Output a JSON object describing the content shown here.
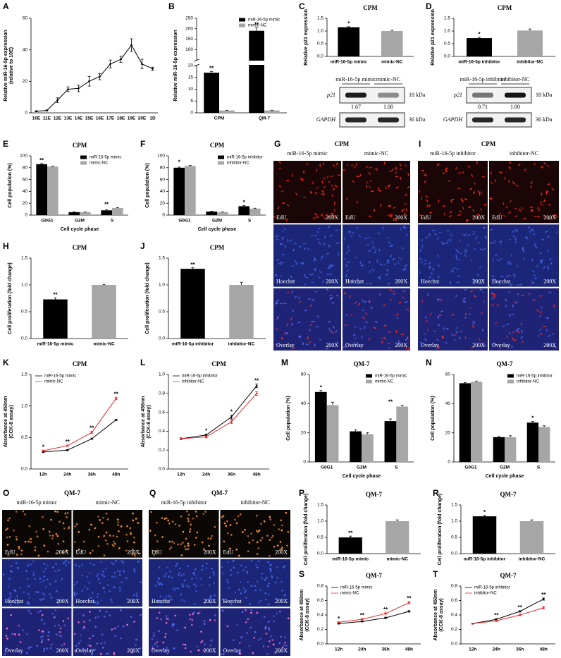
{
  "chart_data": [
    {
      "panel": "A",
      "type": "line",
      "ylabel": [
        "Relative miR-16-5p expression",
        "(relative to 10E)"
      ],
      "categories": [
        "10E",
        "11E",
        "12E",
        "13E",
        "14E",
        "15E",
        "16E",
        "17E",
        "18E",
        "19E",
        "20E",
        "1D"
      ],
      "values": [
        1,
        1.5,
        8,
        15,
        15.5,
        20,
        23,
        31,
        34,
        43,
        31,
        28
      ],
      "errors": [
        0.3,
        0.3,
        1.5,
        1.5,
        2,
        3,
        2,
        2.5,
        2,
        4,
        3,
        1
      ],
      "color": "#000000",
      "ylim": [
        0,
        60
      ],
      "yticks": [
        0,
        20,
        40,
        60
      ]
    },
    {
      "panel": "B",
      "type": "grouped_bar",
      "ylabel": "Relative miR-16-5p expression",
      "categories": [
        "CPM",
        "QM-7"
      ],
      "series": [
        {
          "name": "miR-16-5p mimic",
          "color": "#000000",
          "values": [
            17,
            190
          ],
          "errors": [
            0.5,
            15
          ]
        },
        {
          "name": "mimic-NC",
          "color": "#a6a6a6",
          "values": [
            1,
            1
          ],
          "errors": [
            0.1,
            0.1
          ]
        }
      ],
      "annotations": [
        "**",
        "**"
      ],
      "legend": "upper right",
      "ylim": [
        0,
        250
      ],
      "ybreak": [
        20,
        50
      ],
      "yticks": [
        0,
        5,
        10,
        15,
        20,
        100,
        150,
        200,
        250
      ]
    },
    {
      "panel": "C",
      "type": "bar",
      "title": "CPM",
      "ylabel": "Relative p21 expression",
      "categories": [
        "miR-16-5p mimic",
        "mimic-NC"
      ],
      "values": [
        1.15,
        1.0
      ],
      "errors": [
        0.02,
        0.03
      ],
      "colors": [
        "#000000",
        "#a6a6a6"
      ],
      "annotations": [
        "*",
        null
      ],
      "ylim": [
        0,
        1.5
      ],
      "yticks": [
        {
          "value": 0,
          "label": "0.0"
        },
        {
          "value": 0.5,
          "label": "0.5"
        },
        {
          "value": 1,
          "label": "1.0"
        },
        {
          "value": 1.5,
          "label": "1.5"
        }
      ],
      "blot": {
        "lanes": [
          "miR-16-5p mimic",
          "mimic-NC"
        ],
        "proteins": [
          "p21",
          "GAPDH"
        ],
        "sizes": [
          "18 kDa",
          "36 kDa"
        ],
        "ratios": [
          "1.67",
          "1.00"
        ]
      }
    },
    {
      "panel": "D",
      "type": "bar",
      "title": "CPM",
      "ylabel": "Relative p21 expression",
      "categories": [
        "miR-16-5p inhibitor",
        "inhibitor-NC"
      ],
      "values": [
        0.72,
        1.02
      ],
      "errors": [
        0.03,
        0.06
      ],
      "colors": [
        "#000000",
        "#a6a6a6"
      ],
      "annotations": [
        "*",
        null
      ],
      "ylim": [
        0,
        1.5
      ],
      "yticks": [
        {
          "value": 0,
          "label": "0.0"
        },
        {
          "value": 0.5,
          "label": "0.5"
        },
        {
          "value": 1,
          "label": "1.0"
        },
        {
          "value": 1.5,
          "label": "1.5"
        }
      ],
      "blot": {
        "lanes": [
          "miR-16-5p inhibitor",
          "inhibitor-NC"
        ],
        "proteins": [
          "p21",
          "GAPDH"
        ],
        "sizes": [
          "18 kDa",
          "36 kDa"
        ],
        "ratios": [
          "0.71",
          "1.00"
        ]
      }
    },
    {
      "panel": "E",
      "type": "grouped_bar",
      "title": "CPM",
      "ylabel": "Cell population (%)",
      "xlabel": "Cell cycle phase",
      "categories": [
        "G0G1",
        "G2M",
        "S"
      ],
      "series": [
        {
          "name": "miR-16-5p mimic",
          "color": "#000000",
          "values": [
            86,
            5,
            8
          ],
          "errors": [
            1,
            0.5,
            1
          ]
        },
        {
          "name": "mimic-NC",
          "color": "#a6a6a6",
          "values": [
            82,
            5,
            12
          ],
          "errors": [
            0.8,
            0.5,
            0.6
          ]
        }
      ],
      "annotations": [
        "**",
        null,
        "**"
      ],
      "legend": "upper right",
      "ylim": [
        0,
        100
      ],
      "yticks": [
        0,
        20,
        40,
        60,
        80,
        100
      ]
    },
    {
      "panel": "F",
      "type": "grouped_bar",
      "title": "CPM",
      "ylabel": "Cell population (%)",
      "xlabel": "Cell cycle phase",
      "categories": [
        "G0G1",
        "G2M",
        "S"
      ],
      "series": [
        {
          "name": "miR-16-5p inhibitor",
          "color": "#000000",
          "values": [
            80,
            6,
            15
          ],
          "errors": [
            1,
            0.5,
            1
          ]
        },
        {
          "name": "inhibitor-NC",
          "color": "#a6a6a6",
          "values": [
            83,
            5,
            11
          ],
          "errors": [
            0.8,
            0.5,
            0.6
          ]
        }
      ],
      "annotations": [
        "*",
        null,
        "*"
      ],
      "legend": "upper right",
      "ylim": [
        0,
        100
      ],
      "yticks": [
        0,
        20,
        40,
        60,
        80,
        100
      ]
    },
    {
      "panel": "G",
      "type": "images",
      "title": "CPM",
      "columns": [
        "miR-16-5p mimic",
        "mimic-NC"
      ],
      "rows": [
        "EdU",
        "Hoechst",
        "Overlay"
      ],
      "magnification": "200X"
    },
    {
      "panel": "H",
      "type": "bar",
      "title": "CPM",
      "ylabel": "Cell proliferation (fold change)",
      "categories": [
        "miR-16-5p mimic",
        "mimic-NC"
      ],
      "values": [
        0.73,
        1.0
      ],
      "errors": [
        0.03,
        0.01
      ],
      "colors": [
        "#000000",
        "#a6a6a6"
      ],
      "annotations": [
        "**",
        null
      ],
      "ylim": [
        0,
        1.5
      ],
      "yticks": [
        {
          "value": 0,
          "label": "0.0"
        },
        {
          "value": 0.5,
          "label": "0.5"
        },
        {
          "value": 1,
          "label": "1.0"
        },
        {
          "value": 1.5,
          "label": "1.5"
        }
      ]
    },
    {
      "panel": "I",
      "type": "images",
      "title": "CPM",
      "columns": [
        "miR-16-5p inhibitor",
        "inhibitor-NC"
      ],
      "rows": [
        "EdU",
        "Hoechst",
        "Overlay"
      ],
      "magnification": "200X"
    },
    {
      "panel": "J",
      "type": "bar",
      "title": "CPM",
      "ylabel": "Cell proliferation (fold change)",
      "categories": [
        "miR-16-5p inhibitor",
        "inhibitor-NC"
      ],
      "values": [
        1.3,
        1.0
      ],
      "errors": [
        0.02,
        0.05
      ],
      "colors": [
        "#000000",
        "#a6a6a6"
      ],
      "annotations": [
        "**",
        null
      ],
      "ylim": [
        0,
        1.5
      ],
      "yticks": [
        {
          "value": 0,
          "label": "0.0"
        },
        {
          "value": 0.5,
          "label": "0.5"
        },
        {
          "value": 1,
          "label": "1.0"
        },
        {
          "value": 1.5,
          "label": "1.5"
        }
      ]
    },
    {
      "panel": "K",
      "type": "line",
      "title": "CPM",
      "ylabel": [
        "Absorbance at 450nm",
        "(CCK-8 assay)"
      ],
      "categories": [
        "12h",
        "24h",
        "36h",
        "48h"
      ],
      "series": [
        {
          "name": "miR-16-5p mimic",
          "color": "#000000",
          "values": [
            0.27,
            0.3,
            0.48,
            0.78
          ],
          "errors": [
            0.01,
            0.01,
            0.01,
            0.01
          ]
        },
        {
          "name": "mimic-NC",
          "color": "#e8262b",
          "values": [
            0.29,
            0.37,
            0.58,
            1.12
          ],
          "errors": [
            0.01,
            0.01,
            0.02,
            0.02
          ]
        }
      ],
      "annotations": [
        "*",
        "**",
        "**",
        "**"
      ],
      "legend": "upper left",
      "ylim": [
        0,
        1.5
      ],
      "yticks": [
        {
          "value": 0,
          "label": "0.0"
        },
        {
          "value": 0.5,
          "label": "0.5"
        },
        {
          "value": 1,
          "label": "1.0"
        },
        {
          "value": 1.5,
          "label": "1.5"
        }
      ]
    },
    {
      "panel": "L",
      "type": "line",
      "title": "CPM",
      "ylabel": [
        "Absorbance at 450nm",
        "(CCK-8 assay)"
      ],
      "categories": [
        "12h",
        "24h",
        "36h",
        "48h"
      ],
      "series": [
        {
          "name": "miR-16-5p inhibitor",
          "color": "#000000",
          "values": [
            0.32,
            0.36,
            0.55,
            0.88
          ],
          "errors": [
            0.01,
            0.01,
            0.02,
            0.02
          ]
        },
        {
          "name": "inhibitor-NC",
          "color": "#e8262b",
          "values": [
            0.32,
            0.34,
            0.5,
            0.8
          ],
          "errors": [
            0.01,
            0.01,
            0.02,
            0.02
          ]
        }
      ],
      "annotations": [
        null,
        "*",
        "*",
        "**"
      ],
      "legend": "upper left",
      "ylim": [
        0,
        1
      ],
      "yticks": [
        {
          "value": 0,
          "label": "0.0"
        },
        {
          "value": 0.2,
          "label": "0.2"
        },
        {
          "value": 0.4,
          "label": "0.4"
        },
        {
          "value": 0.6,
          "label": "0.6"
        },
        {
          "value": 0.8,
          "label": "0.8"
        },
        {
          "value": 1,
          "label": "1.0"
        }
      ]
    },
    {
      "panel": "M",
      "type": "grouped_bar",
      "title": "QM-7",
      "ylabel": "Cell population (%)",
      "xlabel": "Cell cycle phase",
      "categories": [
        "G0G1",
        "G2M",
        "S"
      ],
      "series": [
        {
          "name": "miR-16-5p mimic",
          "color": "#000000",
          "values": [
            48,
            21,
            28
          ],
          "errors": [
            1,
            1,
            1.5
          ]
        },
        {
          "name": "mimic-NC",
          "color": "#a6a6a6",
          "values": [
            39,
            19,
            38
          ],
          "errors": [
            2,
            1,
            1
          ]
        }
      ],
      "annotations": [
        "*",
        null,
        "**"
      ],
      "legend": "upper right",
      "ylim": [
        0,
        60
      ],
      "yticks": [
        0,
        20,
        40,
        60
      ]
    },
    {
      "panel": "N",
      "type": "grouped_bar",
      "title": "QM-7",
      "ylabel": "Cell population (%)",
      "xlabel": "Cell cycle phase",
      "categories": [
        "G0G1",
        "G2M",
        "S"
      ],
      "series": [
        {
          "name": "miR-16-5p inhibitor",
          "color": "#000000",
          "values": [
            54,
            17,
            27
          ],
          "errors": [
            0.5,
            0.5,
            0.8
          ]
        },
        {
          "name": "inhibitor-NC",
          "color": "#a6a6a6",
          "values": [
            55,
            17,
            24
          ],
          "errors": [
            0.5,
            1,
            0.8
          ]
        }
      ],
      "annotations": [
        null,
        null,
        "*"
      ],
      "legend": "upper right",
      "ylim": [
        0,
        60
      ],
      "yticks": [
        0,
        20,
        40,
        60
      ]
    },
    {
      "panel": "O",
      "type": "images",
      "title": "QM-7",
      "columns": [
        "miR-16-5p mimic",
        "mimic-NC"
      ],
      "rows": [
        "EdU",
        "Hoechst",
        "Overlay"
      ],
      "magnification": "200X"
    },
    {
      "panel": "P",
      "type": "bar",
      "title": "QM-7",
      "ylabel": "Cell proliferation (fold change)",
      "categories": [
        "miR-16-5p mimic",
        "mimic-NC"
      ],
      "values": [
        0.5,
        1.0
      ],
      "errors": [
        0.04,
        0.04
      ],
      "colors": [
        "#000000",
        "#a6a6a6"
      ],
      "annotations": [
        "**",
        null
      ],
      "ylim": [
        0,
        1.5
      ],
      "yticks": [
        {
          "value": 0,
          "label": "0.0"
        },
        {
          "value": 0.5,
          "label": "0.5"
        },
        {
          "value": 1,
          "label": "1.0"
        },
        {
          "value": 1.5,
          "label": "1.5"
        }
      ]
    },
    {
      "panel": "Q",
      "type": "images",
      "title": "QM-7",
      "columns": [
        "miR-16-5p inhibitor",
        "inhibitor-NC"
      ],
      "rows": [
        "EdU",
        "Hoechst",
        "Overlay"
      ],
      "magnification": "200X"
    },
    {
      "panel": "R",
      "type": "bar",
      "title": "QM-7",
      "ylabel": "Cell proliferation (fold change)",
      "categories": [
        "miR-16-5p inhibitor",
        "inhibitor-NC"
      ],
      "values": [
        1.15,
        1.0
      ],
      "errors": [
        0.03,
        0.04
      ],
      "colors": [
        "#000000",
        "#a6a6a6"
      ],
      "annotations": [
        "*",
        null
      ],
      "ylim": [
        0,
        1.5
      ],
      "yticks": [
        {
          "value": 0,
          "label": "0.0"
        },
        {
          "value": 0.5,
          "label": "0.5"
        },
        {
          "value": 1,
          "label": "1.0"
        },
        {
          "value": 1.5,
          "label": "1.5"
        }
      ]
    },
    {
      "panel": "S",
      "type": "line",
      "title": "QM-7",
      "ylabel": [
        "Absorbance at 450nm",
        "(CCK-8 assay)"
      ],
      "categories": [
        "12h",
        "24h",
        "36h",
        "48h"
      ],
      "series": [
        {
          "name": "miR-16-5p mimic",
          "color": "#000000",
          "values": [
            0.28,
            0.31,
            0.36,
            0.45
          ],
          "errors": [
            0.005,
            0.005,
            0.01,
            0.01
          ]
        },
        {
          "name": "mimic-NC",
          "color": "#e8262b",
          "values": [
            0.3,
            0.34,
            0.42,
            0.57
          ],
          "errors": [
            0.005,
            0.01,
            0.01,
            0.015
          ]
        }
      ],
      "annotations": [
        "*",
        "**",
        "**",
        "**"
      ],
      "legend": "upper left",
      "ylim": [
        0,
        0.8
      ],
      "yticks": [
        {
          "value": 0,
          "label": "0.0"
        },
        {
          "value": 0.2,
          "label": "0.2"
        },
        {
          "value": 0.4,
          "label": "0.4"
        },
        {
          "value": 0.6,
          "label": "0.6"
        },
        {
          "value": 0.8,
          "label": "0.8"
        }
      ]
    },
    {
      "panel": "T",
      "type": "line",
      "title": "QM-7",
      "ylabel": [
        "Absorbance at 450nm",
        "(CCK-8 assay)"
      ],
      "categories": [
        "12h",
        "24h",
        "36h",
        "48h"
      ],
      "series": [
        {
          "name": "miR-16-5p inhibitor",
          "color": "#000000",
          "values": [
            0.28,
            0.34,
            0.45,
            0.62
          ],
          "errors": [
            0.005,
            0.01,
            0.01,
            0.015
          ]
        },
        {
          "name": "inhibitor-NC",
          "color": "#e8262b",
          "values": [
            0.28,
            0.32,
            0.4,
            0.5
          ],
          "errors": [
            0.005,
            0.01,
            0.01,
            0.015
          ]
        }
      ],
      "annotations": [
        null,
        "**",
        "**",
        "**"
      ],
      "legend": "upper left",
      "ylim": [
        0,
        0.8
      ],
      "yticks": [
        {
          "value": 0,
          "label": "0.0"
        },
        {
          "value": 0.2,
          "label": "0.2"
        },
        {
          "value": 0.4,
          "label": "0.4"
        },
        {
          "value": 0.6,
          "label": "0.6"
        },
        {
          "value": 0.8,
          "label": "0.8"
        }
      ]
    }
  ]
}
